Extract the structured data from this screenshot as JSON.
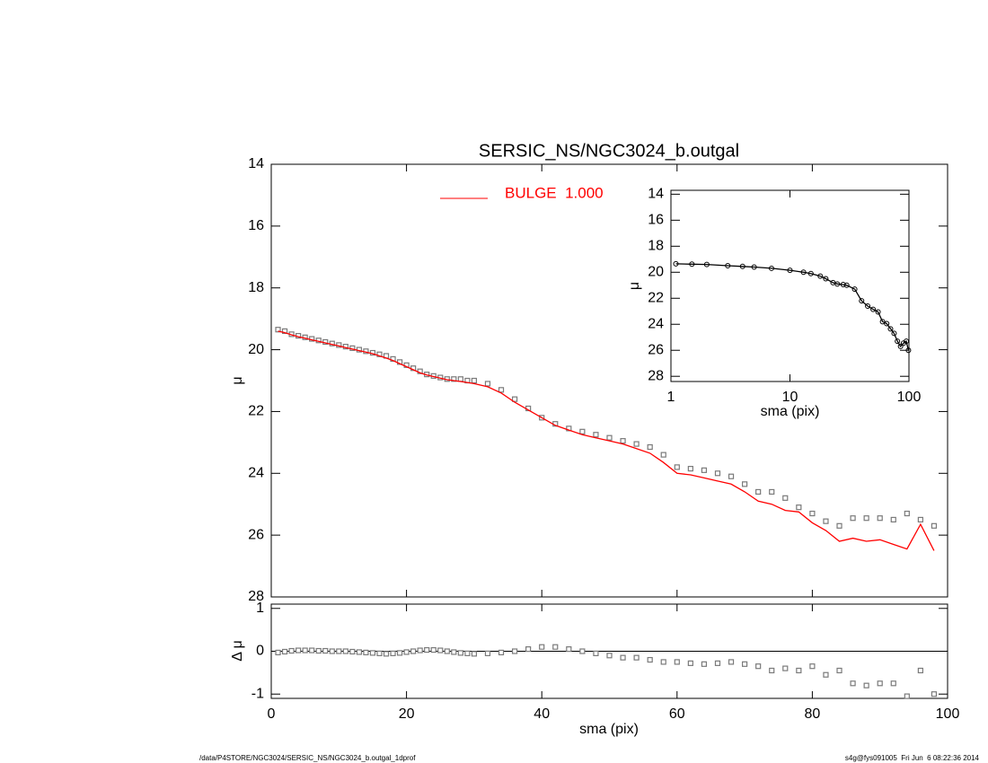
{
  "chart_data": [
    {
      "type": "scatter",
      "title": "SERSIC_NS/NGC3024_b.outgal",
      "ylabel": "μ",
      "xlim": [
        0,
        100
      ],
      "ylim": [
        28,
        14
      ],
      "yticks": [
        14,
        16,
        18,
        20,
        22,
        24,
        26,
        28
      ],
      "legend": "upper center",
      "x": [
        1,
        2,
        3,
        4,
        5,
        6,
        7,
        8,
        9,
        10,
        11,
        12,
        13,
        14,
        15,
        16,
        17,
        18,
        19,
        20,
        21,
        22,
        23,
        24,
        25,
        26,
        27,
        28,
        29,
        30,
        32,
        34,
        36,
        38,
        40,
        42,
        44,
        46,
        48,
        50,
        52,
        54,
        56,
        58,
        60,
        62,
        64,
        66,
        68,
        70,
        72,
        74,
        76,
        78,
        80,
        82,
        84,
        86,
        88,
        90,
        92,
        94,
        96,
        98
      ],
      "series": [
        {
          "color": "#7a7a7a",
          "mode": "markers",
          "values": [
            19.35,
            19.4,
            19.5,
            19.55,
            19.6,
            19.65,
            19.7,
            19.75,
            19.8,
            19.85,
            19.9,
            19.95,
            20.0,
            20.05,
            20.1,
            20.15,
            20.2,
            20.3,
            20.4,
            20.5,
            20.6,
            20.7,
            20.8,
            20.85,
            20.9,
            20.95,
            20.95,
            20.95,
            21.0,
            21.0,
            21.1,
            21.3,
            21.6,
            21.9,
            22.2,
            22.4,
            22.55,
            22.65,
            22.75,
            22.85,
            22.95,
            23.05,
            23.15,
            23.4,
            23.8,
            23.85,
            23.9,
            24.0,
            24.1,
            24.35,
            24.6,
            24.6,
            24.8,
            25.1,
            25.3,
            25.55,
            25.7,
            25.45,
            25.45,
            25.45,
            25.5,
            25.3,
            25.5,
            25.7
          ]
        },
        {
          "name": "BULGE  1.000",
          "color": "#ff0000",
          "mode": "line",
          "values": [
            19.4,
            19.45,
            19.52,
            19.58,
            19.63,
            19.68,
            19.73,
            19.78,
            19.83,
            19.88,
            19.93,
            19.98,
            20.03,
            20.08,
            20.13,
            20.2,
            20.27,
            20.35,
            20.45,
            20.55,
            20.65,
            20.75,
            20.82,
            20.87,
            20.92,
            20.97,
            21.0,
            21.03,
            21.06,
            21.1,
            21.2,
            21.4,
            21.7,
            21.95,
            22.2,
            22.45,
            22.6,
            22.75,
            22.85,
            22.95,
            23.05,
            23.2,
            23.35,
            23.65,
            24.0,
            24.05,
            24.15,
            24.25,
            24.35,
            24.6,
            24.9,
            25.0,
            25.2,
            25.25,
            25.6,
            25.85,
            26.2,
            26.1,
            26.2,
            26.15,
            26.3,
            26.45,
            25.65,
            26.5
          ]
        }
      ]
    },
    {
      "type": "scatter",
      "xlabel": "sma (pix)",
      "ylabel": "Δ μ",
      "xlim": [
        0,
        100
      ],
      "xticks": [
        0,
        20,
        40,
        60,
        80,
        100
      ],
      "ylim": [
        -1.1,
        1.1
      ],
      "yticks": [
        -1,
        0,
        1
      ],
      "hline": 0,
      "x": [
        1,
        2,
        3,
        4,
        5,
        6,
        7,
        8,
        9,
        10,
        11,
        12,
        13,
        14,
        15,
        16,
        17,
        18,
        19,
        20,
        21,
        22,
        23,
        24,
        25,
        26,
        27,
        28,
        29,
        30,
        32,
        34,
        36,
        38,
        40,
        42,
        44,
        46,
        48,
        50,
        52,
        54,
        56,
        58,
        60,
        62,
        64,
        66,
        68,
        70,
        72,
        74,
        76,
        78,
        80,
        82,
        84,
        86,
        88,
        90,
        92,
        94,
        96,
        98
      ],
      "series": [
        {
          "color": "#7a7a7a",
          "mode": "markers",
          "values": [
            -0.03,
            -0.01,
            0.01,
            0.02,
            0.02,
            0.02,
            0.01,
            0.01,
            0,
            0,
            0,
            -0.01,
            -0.02,
            -0.03,
            -0.04,
            -0.05,
            -0.06,
            -0.05,
            -0.04,
            -0.02,
            0,
            0.02,
            0.03,
            0.03,
            0.02,
            0,
            -0.02,
            -0.04,
            -0.05,
            -0.06,
            -0.05,
            -0.03,
            0,
            0.05,
            0.1,
            0.1,
            0.05,
            0,
            -0.05,
            -0.1,
            -0.15,
            -0.15,
            -0.2,
            -0.25,
            -0.25,
            -0.28,
            -0.3,
            -0.28,
            -0.25,
            -0.3,
            -0.35,
            -0.45,
            -0.4,
            -0.45,
            -0.35,
            -0.55,
            -0.45,
            -0.75,
            -0.8,
            -0.75,
            -0.75,
            -1.05,
            -0.45,
            -1.0
          ]
        }
      ]
    },
    {
      "type": "scatter",
      "xlabel": "sma (pix)",
      "ylabel": "μ",
      "xlog": true,
      "xlim": [
        1,
        100
      ],
      "xticks": [
        1,
        10,
        100
      ],
      "ylim": [
        28.4,
        13.7
      ],
      "yticks": [
        14,
        16,
        18,
        20,
        22,
        24,
        26,
        28
      ],
      "x": [
        1.1,
        1.5,
        2,
        3,
        4,
        5,
        7,
        10,
        13,
        15,
        18,
        20,
        23,
        25,
        28,
        30,
        35,
        40,
        45,
        50,
        55,
        60,
        65,
        70,
        75,
        80,
        85,
        90,
        95,
        99
      ],
      "series": [
        {
          "color": "#000000",
          "mode": "markers+line",
          "values": [
            19.35,
            19.38,
            19.4,
            19.5,
            19.55,
            19.6,
            19.7,
            19.85,
            20.0,
            20.1,
            20.3,
            20.5,
            20.8,
            20.9,
            20.95,
            21.0,
            21.3,
            22.2,
            22.6,
            22.85,
            23.05,
            23.8,
            23.95,
            24.35,
            24.7,
            25.3,
            25.7,
            25.45,
            25.3,
            26.0
          ]
        }
      ]
    }
  ],
  "footer": {
    "left": "/data/P4STORE/NGC3024/SERSIC_NS/NGC3024_b.outgal_1dprof",
    "right": "s4g@fys091005  Fri Jun  6 08:22:36 2014"
  }
}
